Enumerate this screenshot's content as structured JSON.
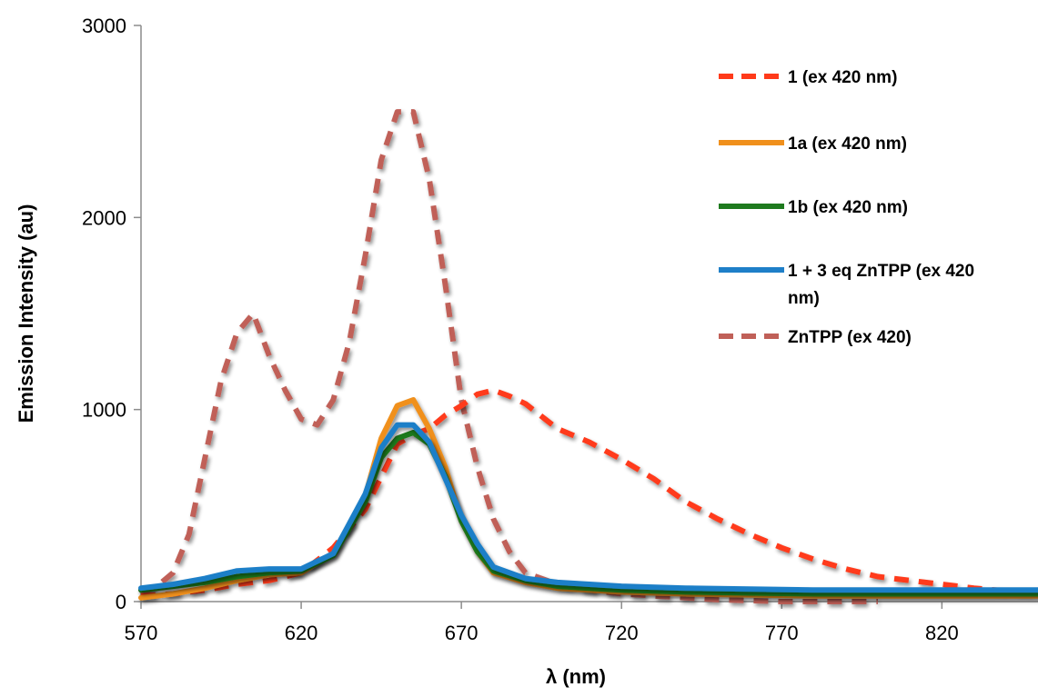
{
  "chart_data": {
    "type": "line",
    "title": "",
    "xlabel": "λ (nm)",
    "ylabel": "Emission Intensity (au)",
    "xlim": [
      570,
      850
    ],
    "ylim": [
      0,
      3000
    ],
    "xticks": [
      570,
      620,
      670,
      720,
      770,
      820
    ],
    "yticks": [
      0,
      1000,
      2000,
      3000
    ],
    "grid": false,
    "legend_position": "top-right",
    "series": [
      {
        "name": "1 (ex 420 nm)",
        "color": "#ff3a1a",
        "dash": true,
        "x": [
          570,
          580,
          590,
          600,
          610,
          620,
          630,
          640,
          645,
          650,
          655,
          660,
          665,
          670,
          675,
          680,
          685,
          690,
          700,
          710,
          720,
          730,
          740,
          750,
          760,
          770,
          780,
          790,
          800,
          810,
          820,
          830,
          840,
          850
        ],
        "y": [
          30,
          40,
          60,
          90,
          110,
          150,
          280,
          480,
          650,
          820,
          870,
          900,
          970,
          1020,
          1080,
          1100,
          1070,
          1030,
          900,
          830,
          740,
          640,
          520,
          430,
          350,
          280,
          220,
          170,
          130,
          110,
          90,
          70,
          55,
          50
        ]
      },
      {
        "name": "1a (ex 420 nm)",
        "color": "#f0901c",
        "dash": false,
        "x": [
          570,
          580,
          590,
          600,
          610,
          620,
          630,
          640,
          645,
          650,
          655,
          660,
          665,
          670,
          675,
          680,
          690,
          700,
          710,
          720,
          740,
          760,
          780,
          800,
          820,
          850
        ],
        "y": [
          20,
          40,
          70,
          110,
          140,
          150,
          250,
          550,
          850,
          1020,
          1050,
          900,
          700,
          420,
          260,
          150,
          100,
          70,
          60,
          50,
          40,
          35,
          30,
          30,
          30,
          30
        ]
      },
      {
        "name": "1b (ex 420 nm)",
        "color": "#1e7a1e",
        "dash": false,
        "x": [
          570,
          580,
          590,
          600,
          610,
          620,
          630,
          640,
          645,
          650,
          655,
          660,
          665,
          670,
          675,
          680,
          690,
          700,
          710,
          720,
          740,
          760,
          780,
          800,
          820,
          850
        ],
        "y": [
          60,
          80,
          100,
          130,
          150,
          160,
          240,
          520,
          750,
          850,
          880,
          820,
          650,
          420,
          260,
          160,
          110,
          80,
          70,
          60,
          50,
          45,
          40,
          40,
          40,
          40
        ]
      },
      {
        "name": "1 + 3 eq ZnTPP (ex 420 nm)",
        "color": "#1f7fc8",
        "dash": false,
        "x": [
          570,
          580,
          590,
          600,
          610,
          620,
          630,
          640,
          645,
          650,
          655,
          660,
          665,
          670,
          675,
          680,
          690,
          700,
          710,
          720,
          740,
          760,
          780,
          800,
          820,
          850
        ],
        "y": [
          70,
          90,
          120,
          160,
          170,
          170,
          250,
          560,
          800,
          920,
          920,
          830,
          640,
          450,
          300,
          180,
          120,
          100,
          90,
          80,
          70,
          65,
          60,
          60,
          60,
          60
        ]
      },
      {
        "name": "ZnTPP (ex 420)",
        "color": "#c06058",
        "dash": true,
        "x": [
          570,
          575,
          580,
          585,
          590,
          595,
          600,
          605,
          610,
          615,
          620,
          625,
          630,
          635,
          640,
          645,
          650,
          655,
          660,
          665,
          670,
          675,
          680,
          685,
          690,
          700,
          710,
          720,
          730,
          740,
          750,
          760,
          770,
          780,
          790,
          800
        ],
        "y": [
          40,
          80,
          150,
          350,
          750,
          1150,
          1400,
          1500,
          1280,
          1100,
          950,
          920,
          1050,
          1350,
          1800,
          2300,
          2550,
          2550,
          2200,
          1650,
          1050,
          700,
          430,
          260,
          150,
          90,
          60,
          40,
          30,
          20,
          10,
          5,
          0,
          0,
          0,
          0
        ]
      }
    ]
  }
}
